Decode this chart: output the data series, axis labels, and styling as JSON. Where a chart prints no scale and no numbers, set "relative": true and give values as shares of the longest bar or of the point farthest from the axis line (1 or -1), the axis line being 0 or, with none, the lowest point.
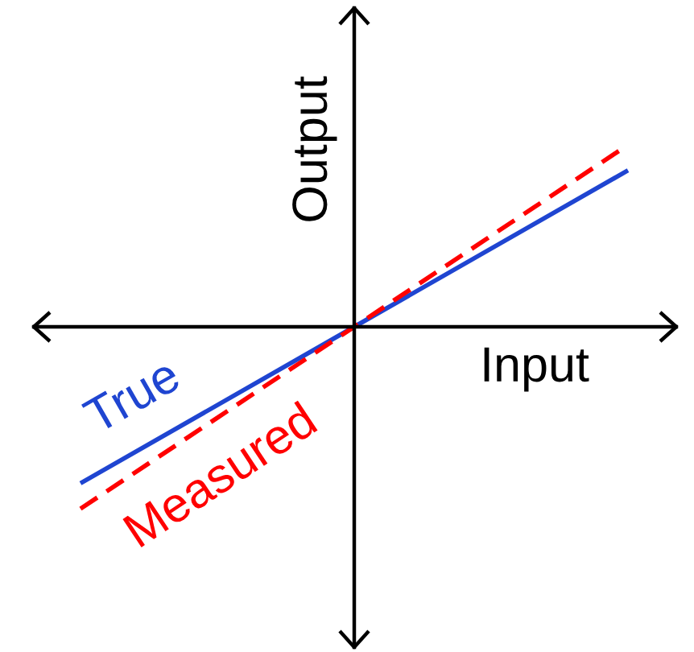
{
  "chart_data": {
    "type": "line",
    "xlabel": "Input",
    "ylabel": "Output",
    "relative": true,
    "categories": [
      null,
      null,
      null
    ],
    "series": [
      {
        "name": "True",
        "color": "#1f45d1",
        "line_style": "solid",
        "values": [
          -0.86,
          0,
          0.86
        ]
      },
      {
        "name": "Measured",
        "color": "#ff0000",
        "line_style": "dashed",
        "values": [
          -1,
          0,
          1
        ]
      }
    ]
  }
}
